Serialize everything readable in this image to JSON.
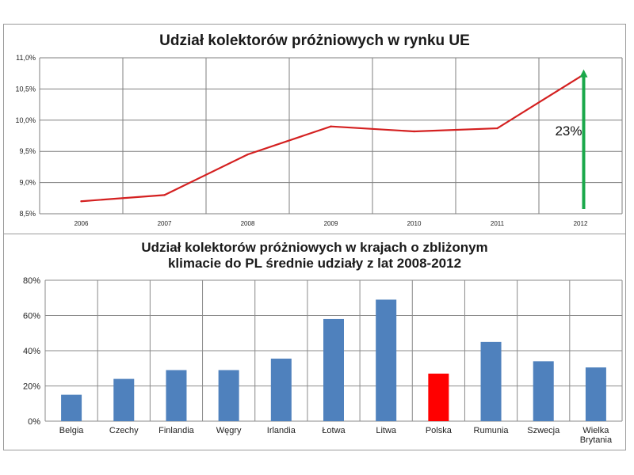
{
  "chart_data": [
    {
      "type": "line",
      "title": "Udział kolektorów próżniowych w rynku UE",
      "categories": [
        "2006",
        "2007",
        "2008",
        "2009",
        "2010",
        "2011",
        "2012"
      ],
      "series": [
        {
          "values": [
            8.7,
            8.8,
            9.45,
            9.9,
            9.82,
            9.87,
            10.7
          ]
        }
      ],
      "ylim": [
        8.5,
        11.0
      ],
      "yticks": [
        "11,0%",
        "10,5%",
        "10,0%",
        "9,5%",
        "9,0%",
        "8,5%"
      ],
      "ytick_values": [
        11.0,
        10.5,
        10.0,
        9.5,
        9.0,
        8.5
      ],
      "grid": true,
      "line_color": "#d42020",
      "annotation": {
        "text": "23%",
        "color": "#1aa84a"
      }
    },
    {
      "type": "bar",
      "title": [
        "Udział kolektorów próżniowych w krajach o zbliżonym",
        "klimacie do PL średnie udziały z lat 2008-2012"
      ],
      "categories": [
        "Belgia",
        "Czechy",
        "Finlandia",
        "Węgry",
        "Irlandia",
        "Łotwa",
        "Litwa",
        "Polska",
        "Rumunia",
        "Szwecja",
        "Wielka Brytania"
      ],
      "category_lines": [
        [
          "Belgia"
        ],
        [
          "Czechy"
        ],
        [
          "Finlandia"
        ],
        [
          "Węgry"
        ],
        [
          "Irlandia"
        ],
        [
          "Łotwa"
        ],
        [
          "Litwa"
        ],
        [
          "Polska"
        ],
        [
          "Rumunia"
        ],
        [
          "Szwecja"
        ],
        [
          "Wielka",
          "Brytania"
        ]
      ],
      "values": [
        15,
        24,
        29,
        29,
        35.5,
        58,
        69,
        27,
        45,
        34,
        30.5
      ],
      "ylim": [
        0,
        80
      ],
      "yticks": [
        "80%",
        "60%",
        "40%",
        "20%",
        "0%"
      ],
      "ytick_values": [
        80,
        60,
        40,
        20,
        0
      ],
      "grid": true,
      "bar_color": "#4f81bd",
      "highlight": {
        "category": "Polska",
        "color": "#ff0000"
      }
    }
  ]
}
